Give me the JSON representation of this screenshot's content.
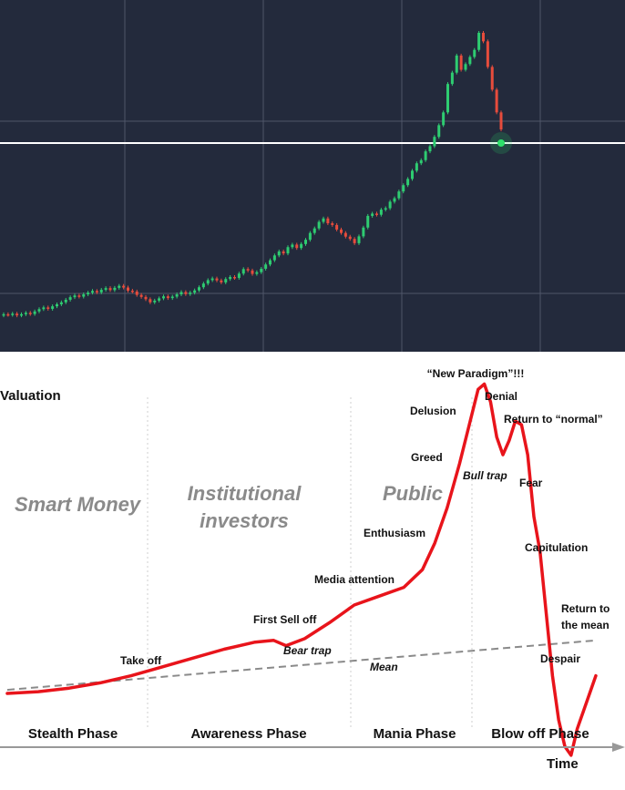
{
  "chart_data": [
    {
      "type": "candlestick",
      "grid": true,
      "colors": {
        "background": "#232a3c",
        "grid": "#5c6375",
        "up": "#2ecc71",
        "down": "#e74c3c",
        "current_price_line": "#ffffff",
        "marker": "#2ee06a"
      },
      "close": [
        1.0,
        0.8,
        1.2,
        0.6,
        1.0,
        1.5,
        1.1,
        2.0,
        2.8,
        3.4,
        2.9,
        3.8,
        4.5,
        5.2,
        6.1,
        7.0,
        7.6,
        7.2,
        8.0,
        8.6,
        9.2,
        8.7,
        9.6,
        10.2,
        9.5,
        10.3,
        11.0,
        10.4,
        9.3,
        9.0,
        7.8,
        7.1,
        6.3,
        5.2,
        5.8,
        6.6,
        7.3,
        6.7,
        7.2,
        8.0,
        8.8,
        8.1,
        8.6,
        9.4,
        10.5,
        11.8,
        13.0,
        13.6,
        12.9,
        12.2,
        13.4,
        14.1,
        13.8,
        15.3,
        16.9,
        16.4,
        15.2,
        15.8,
        17.0,
        18.5,
        20.0,
        21.7,
        23.1,
        22.4,
        24.6,
        25.5,
        24.3,
        25.7,
        27.2,
        29.6,
        31.2,
        33.5,
        34.7,
        33.0,
        32.4,
        30.8,
        29.6,
        28.3,
        27.5,
        26.0,
        28.4,
        31.5,
        35.6,
        36.4,
        36.0,
        37.8,
        38.3,
        40.6,
        41.8,
        44.2,
        46.4,
        48.6,
        51.5,
        54.1,
        55.2,
        58.3,
        60.1,
        63.4,
        67.5,
        72.0,
        82.0,
        86.0,
        92.0,
        87.0,
        89.0,
        91.5,
        94.0,
        100.0,
        97.0,
        88.0,
        80.0,
        72.0,
        66.0
      ]
    },
    {
      "type": "line",
      "ylabel": "Valuation",
      "xlabel": "Time",
      "groups": [
        "Smart Money",
        "Institutional investors",
        "Public"
      ],
      "phases": [
        "Stealth Phase",
        "Awareness Phase",
        "Mania Phase",
        "Blow off Phase"
      ],
      "series": [
        {
          "x": [
            0,
            5,
            10,
            15,
            20,
            25,
            30,
            35,
            40,
            43,
            45,
            48,
            52,
            56,
            60,
            64,
            67,
            69,
            71,
            73,
            75,
            76,
            77,
            78,
            79,
            80,
            81,
            82,
            83,
            84,
            85,
            86,
            87,
            88,
            89,
            90,
            91,
            92,
            93,
            94,
            95
          ],
          "values": [
            0,
            1,
            3,
            6,
            10,
            15,
            20,
            25,
            29,
            30,
            27,
            31,
            40,
            50,
            55,
            60,
            70,
            85,
            105,
            130,
            158,
            172,
            175,
            165,
            145,
            135,
            143,
            154,
            152,
            135,
            100,
            80,
            45,
            10,
            -15,
            -30,
            -35,
            -20,
            -10,
            0,
            10
          ],
          "color": "#e8141b"
        },
        {
          "name": "Mean",
          "x": [
            0,
            95
          ],
          "values": [
            2,
            30
          ],
          "color": "#8a8a8a"
        }
      ],
      "annotations": [
        "“New Paradigm”!!!",
        "Denial",
        "Return to “normal”",
        "Delusion",
        "Greed",
        "Bull trap",
        "Fear",
        "Enthusiasm",
        "Capitulation",
        "Media attention",
        "First Sell off",
        "Bear trap",
        "Take off",
        "Mean",
        "Return to",
        "the mean",
        "Despair"
      ]
    }
  ]
}
